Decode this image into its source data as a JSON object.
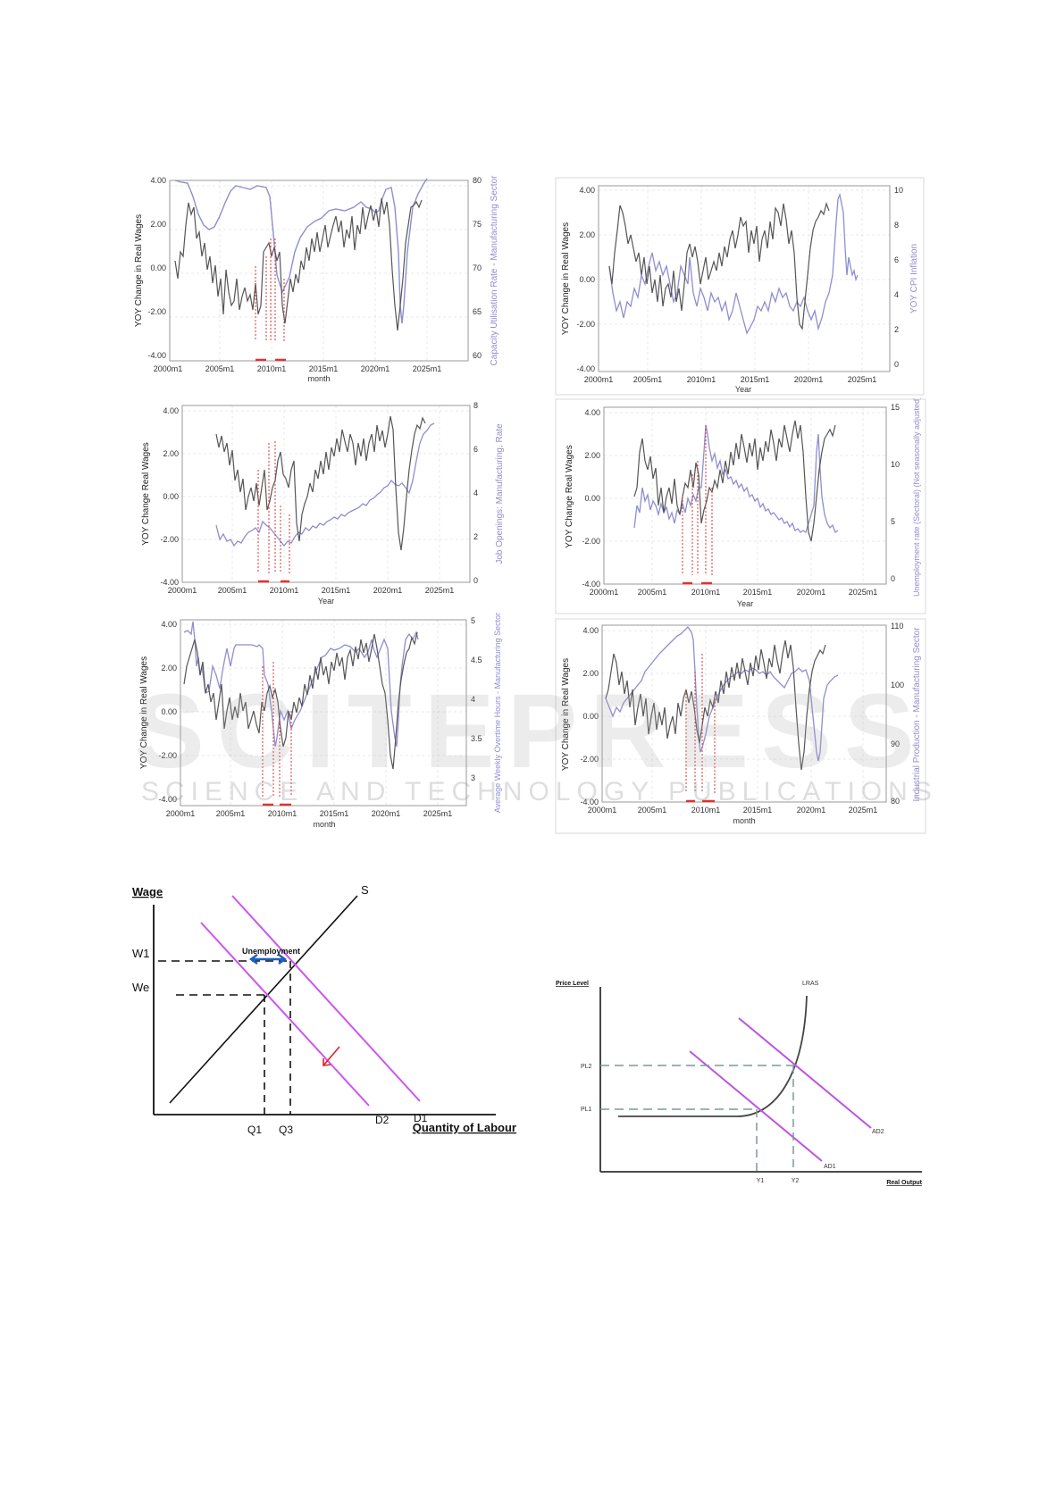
{
  "charts": [
    {
      "id": "panel-capacity",
      "left_axis": {
        "label": "YOY Change in Real Wages",
        "ticks": [
          "4.00",
          "2.00",
          "0.00",
          "-2.00",
          "-4.00"
        ]
      },
      "right_axis": {
        "label": "Capacity Utilisation Rate - Manufacturing Sector",
        "ticks": [
          "80",
          "75",
          "70",
          "65",
          "60"
        ]
      },
      "x_axis": {
        "label": "month",
        "ticks": [
          "2000m1",
          "2005m1",
          "2010m1",
          "2015m1",
          "2020m1",
          "2025m1"
        ]
      },
      "colors": {
        "wages": "#555555",
        "indicator": "#8e8ed0",
        "markers": "#dd3333"
      }
    },
    {
      "id": "panel-cpi",
      "left_axis": {
        "label": "YOY Change in Real Wages",
        "ticks": [
          "4.00",
          "2.00",
          "0.00",
          "-2.00",
          "-4.00"
        ]
      },
      "right_axis": {
        "label": "YOY CPI Inflation",
        "ticks": [
          "10",
          "8",
          "6",
          "4",
          "2",
          "0"
        ]
      },
      "x_axis": {
        "label": "Year",
        "ticks": [
          "2000m1",
          "2005m1",
          "2010m1",
          "2015m1",
          "2020m1",
          "2025m1"
        ]
      },
      "colors": {
        "wages": "#555555",
        "indicator": "#8e8ed0",
        "markers": "#dd3333"
      }
    },
    {
      "id": "panel-job-openings",
      "left_axis": {
        "label": "YOY Change Real Wages",
        "ticks": [
          "4.00",
          "2.00",
          "0.00",
          "-2.00",
          "-4.00"
        ]
      },
      "right_axis": {
        "label": "Job Openings: Manufacturing, Rate",
        "ticks": [
          "8",
          "6",
          "4",
          "2",
          "0"
        ]
      },
      "x_axis": {
        "label": "Year",
        "ticks": [
          "2000m1",
          "2005m1",
          "2010m1",
          "2015m1",
          "2020m1",
          "2025m1"
        ]
      },
      "colors": {
        "wages": "#555555",
        "indicator": "#8e8ed0",
        "markers": "#dd3333"
      }
    },
    {
      "id": "panel-unemployment",
      "left_axis": {
        "label": "YOY Change Real Wages",
        "ticks": [
          "4.00",
          "2.00",
          "0.00",
          "-2.00",
          "-4.00"
        ]
      },
      "right_axis": {
        "label": "Unemployment rate (Sectoral) (Not seasonally adjusted)",
        "ticks": [
          "15",
          "10",
          "5",
          "0"
        ]
      },
      "x_axis": {
        "label": "Year",
        "ticks": [
          "2000m1",
          "2005m1",
          "2010m1",
          "2015m1",
          "2020m1",
          "2025m1"
        ]
      },
      "colors": {
        "wages": "#555555",
        "indicator": "#8e8ed0",
        "markers": "#dd3333"
      }
    },
    {
      "id": "panel-overtime",
      "left_axis": {
        "label": "YOY Change in Real Wages",
        "ticks": [
          "4.00",
          "2.00",
          "0.00",
          "-2.00",
          "-4.00"
        ]
      },
      "right_axis": {
        "label": "Average Weekly Overtime Hours - Manufacturing Sector",
        "ticks": [
          "5",
          "4.5",
          "4",
          "3.5",
          "3"
        ]
      },
      "x_axis": {
        "label": "month",
        "ticks": [
          "2000m1",
          "2005m1",
          "2010m1",
          "2015m1",
          "2020m1",
          "2025m1"
        ]
      },
      "colors": {
        "wages": "#555555",
        "indicator": "#8e8ed0",
        "markers": "#dd3333"
      }
    },
    {
      "id": "panel-industrial",
      "left_axis": {
        "label": "YOY Change in Real Wages",
        "ticks": [
          "4.00",
          "2.00",
          "0.00",
          "-2.00",
          "-4.00"
        ]
      },
      "right_axis": {
        "label": "Industrial Production - Manufacturing Sector",
        "ticks": [
          "110",
          "100",
          "90",
          "80"
        ]
      },
      "x_axis": {
        "label": "month",
        "ticks": [
          "2000m1",
          "2005m1",
          "2010m1",
          "2015m1",
          "2020m1",
          "2025m1"
        ]
      },
      "colors": {
        "wages": "#555555",
        "indicator": "#8e8ed0",
        "markers": "#dd3333"
      }
    }
  ],
  "labour_diagram": {
    "y_label": "Wage",
    "x_label": "Quantity of Labour",
    "w1": "W1",
    "we": "We",
    "q1": "Q1",
    "q3": "Q3",
    "s": "S",
    "d1": "D1",
    "d2": "D2",
    "gap_label": "Unemployment",
    "colors": {
      "demand": "#cc55ee",
      "supply": "#111111",
      "arrow": "#1f5fbf",
      "shift": "#dd2222"
    }
  },
  "adas_diagram": {
    "y_label": "Price Level",
    "x_label": "Real Output",
    "pl1": "PL1",
    "pl2": "PL2",
    "y1": "Y1",
    "y2": "Y2",
    "lras": "LRAS",
    "ad1": "AD1",
    "ad2": "AD2",
    "colors": {
      "ad": "#bb55e0",
      "lras": "#444444",
      "guides": "#7a9a9a"
    }
  },
  "watermark": {
    "main": "SCITEPRESS",
    "sub": "SCIENCE AND TECHNOLOGY PUBLICATIONS"
  }
}
